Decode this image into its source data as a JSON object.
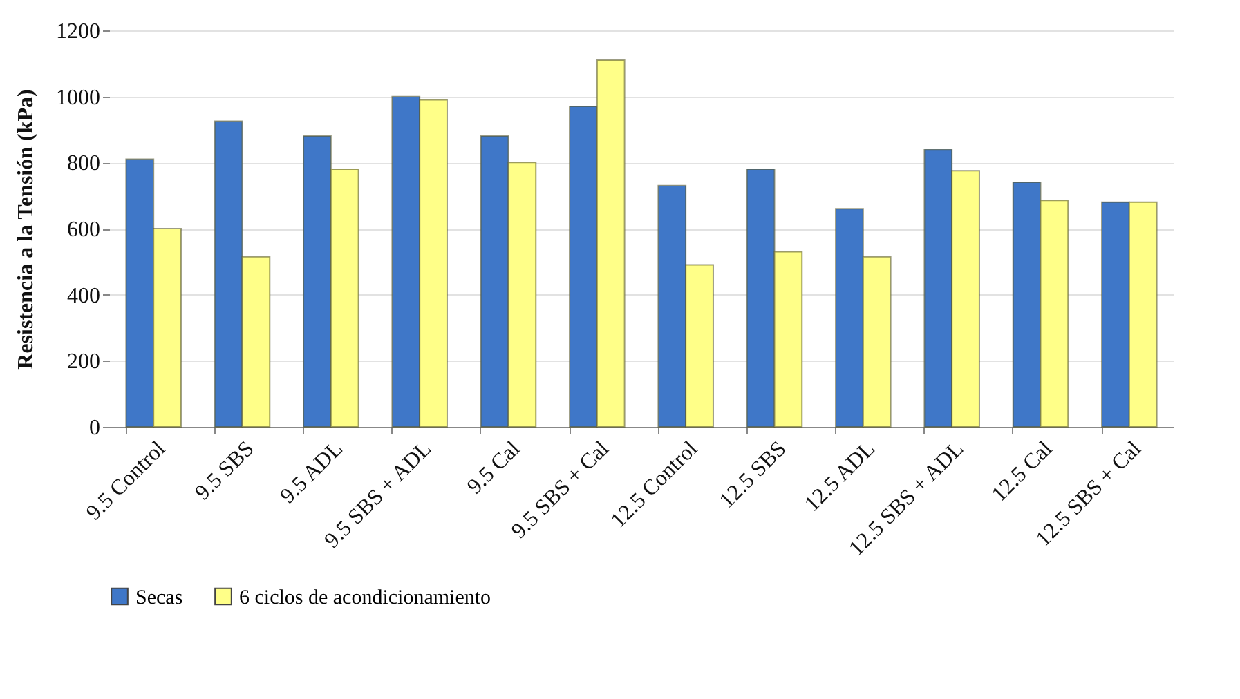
{
  "chart_data": {
    "type": "bar",
    "ylabel": "Resistencia a la Tensión (kPa)",
    "categories": [
      "9.5 Control",
      "9.5 SBS",
      "9.5 ADL",
      "9.5 SBS + ADL",
      "9.5 Cal",
      "9.5 SBS + Cal",
      "12.5 Control",
      "12.5 SBS",
      "12.5 ADL",
      "12.5 SBS + ADL",
      "12.5 Cal",
      "12.5 SBS + Cal"
    ],
    "series": [
      {
        "name": "Secas",
        "color": "#3f77c8",
        "values": [
          810,
          925,
          880,
          1000,
          880,
          970,
          730,
          780,
          660,
          840,
          740,
          680
        ]
      },
      {
        "name": "6 ciclos de acondicionamiento",
        "color": "#ffff88",
        "values": [
          600,
          515,
          780,
          990,
          800,
          1110,
          490,
          530,
          515,
          775,
          685,
          680
        ]
      }
    ],
    "ylim": [
      0,
      1200
    ],
    "yticks": [
      0,
      200,
      400,
      600,
      800,
      1000,
      1200
    ],
    "grid": "y",
    "legend": "bottom"
  }
}
